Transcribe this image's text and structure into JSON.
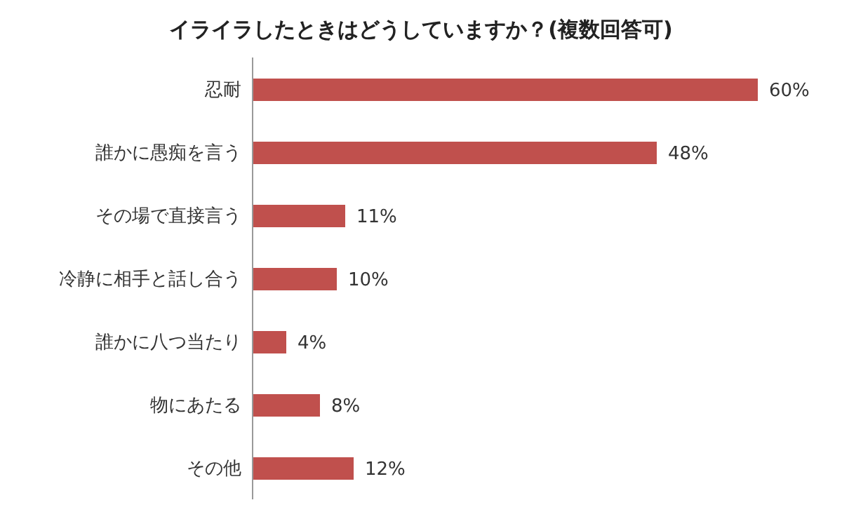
{
  "chart_data": {
    "type": "bar",
    "orientation": "horizontal",
    "title": "イライラしたときはどうしていますか？(複数回答可)",
    "categories": [
      "忍耐",
      "誰かに愚痴を言う",
      "その場で直接言う",
      "冷静に相手と話し合う",
      "誰かに八つ当たり",
      "物にあたる",
      "その他"
    ],
    "values": [
      60,
      48,
      11,
      10,
      4,
      8,
      12
    ],
    "value_labels": [
      "60%",
      "48%",
      "11%",
      "10%",
      "4%",
      "8%",
      "12%"
    ],
    "color": "#c0504d",
    "tick_labels": "y",
    "grid": false,
    "legend": false
  }
}
